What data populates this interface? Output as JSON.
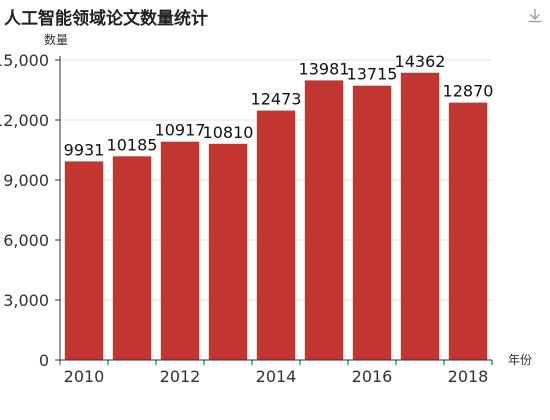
{
  "toolbar": {
    "download_icon": "download-icon"
  },
  "chart_data": {
    "type": "bar",
    "title": "人工智能领域论文数量统计",
    "xlabel": "年份",
    "ylabel": "数量",
    "categories": [
      "2010",
      "2011",
      "2012",
      "2013",
      "2014",
      "2015",
      "2016",
      "2017",
      "2018"
    ],
    "x_tick_labels": [
      "2010",
      "",
      "2012",
      "",
      "2014",
      "",
      "2016",
      "",
      "2018"
    ],
    "values": [
      9931,
      10185,
      10917,
      10810,
      12473,
      13981,
      13715,
      14362,
      12870
    ],
    "data_labels": [
      "9931",
      "10185",
      "10917",
      "10810",
      "12473",
      "13981",
      "13715",
      "14362",
      "12870"
    ],
    "ylim": [
      0,
      15000
    ],
    "y_ticks": [
      0,
      3000,
      6000,
      9000,
      12000,
      15000
    ],
    "y_tick_labels": [
      "0",
      "3,000",
      "6,000",
      "9,000",
      "12,000",
      "15,000"
    ],
    "grid": true,
    "bar_color": "#c23531",
    "grid_color": "#e0e0e0",
    "axis_color": "#333333"
  }
}
